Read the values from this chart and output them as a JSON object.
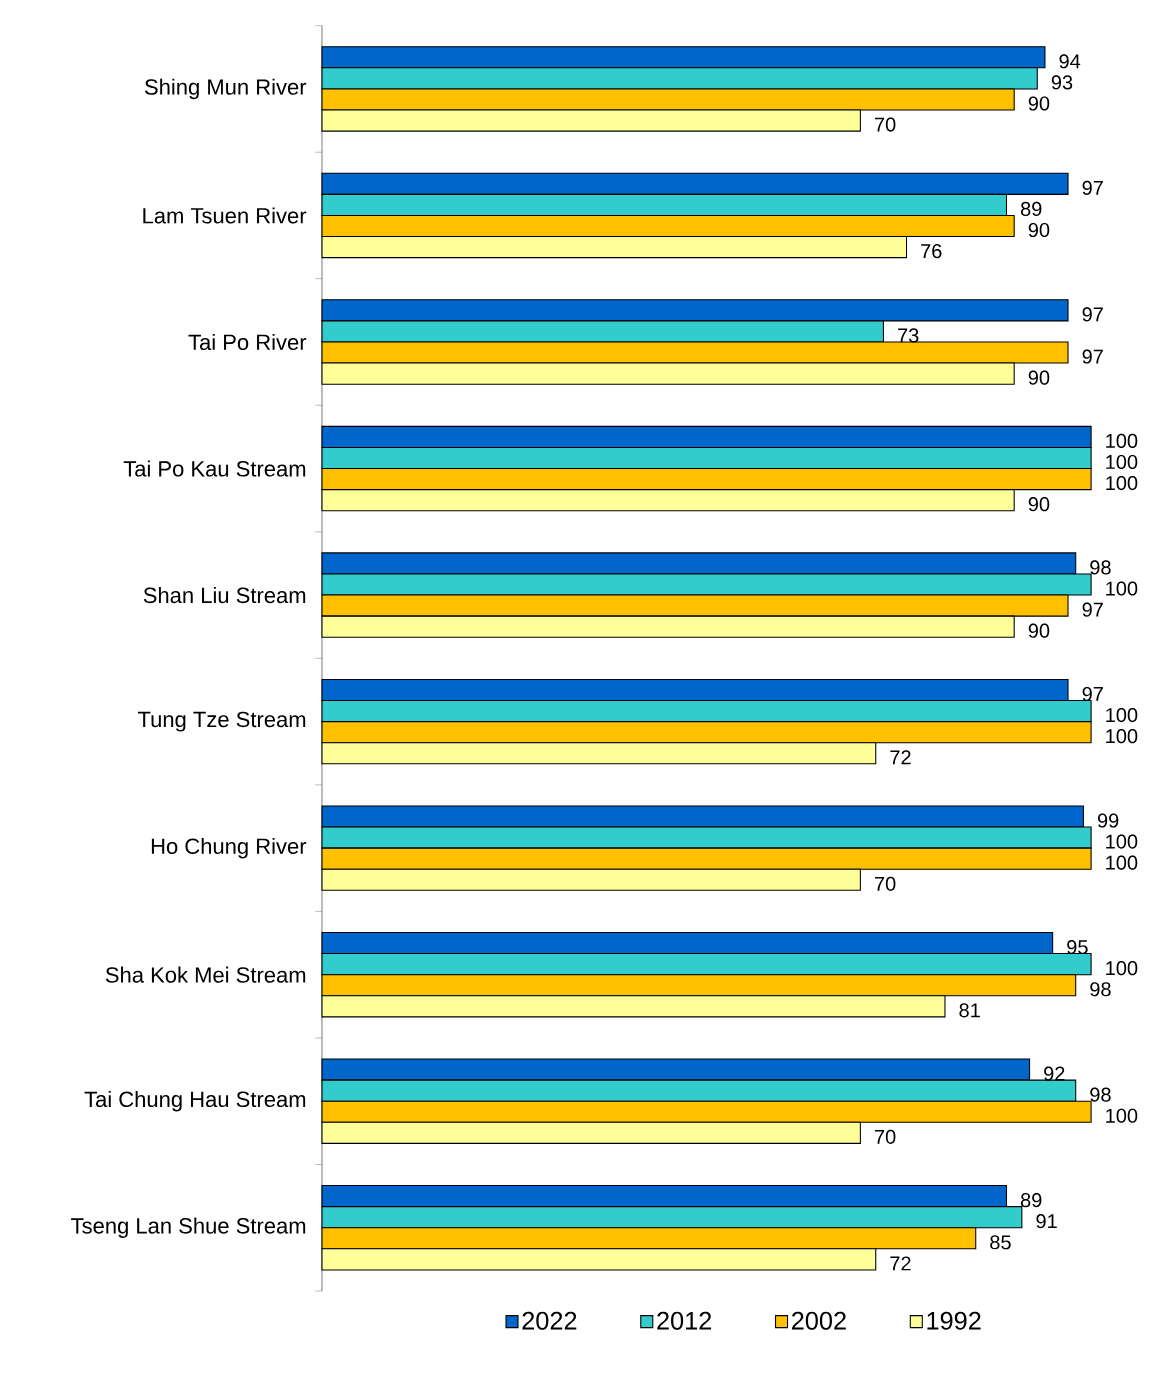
{
  "chart_data": {
    "type": "bar",
    "orientation": "horizontal",
    "categories": [
      "Shing Mun River",
      "Lam Tsuen River",
      "Tai Po River",
      "Tai Po Kau Stream",
      "Shan Liu Stream",
      "Tung Tze Stream",
      "Ho Chung River",
      "Sha Kok Mei Stream",
      "Tai Chung Hau Stream",
      "Tseng Lan Shue Stream"
    ],
    "series": [
      {
        "name": "2022",
        "color": "#0066cc",
        "values": [
          94,
          97,
          97,
          100,
          98,
          97,
          99,
          95,
          92,
          89
        ]
      },
      {
        "name": "2012",
        "color": "#33cccc",
        "values": [
          93,
          89,
          73,
          100,
          100,
          100,
          100,
          100,
          98,
          91
        ]
      },
      {
        "name": "2002",
        "color": "#ffc000",
        "values": [
          90,
          90,
          97,
          100,
          97,
          100,
          100,
          98,
          100,
          85
        ]
      },
      {
        "name": "1992",
        "color": "#ffff99",
        "values": [
          70,
          76,
          90,
          90,
          90,
          72,
          70,
          81,
          70,
          72
        ]
      }
    ],
    "data_labels": true,
    "legend": "bottom",
    "tick_labels": "y"
  }
}
